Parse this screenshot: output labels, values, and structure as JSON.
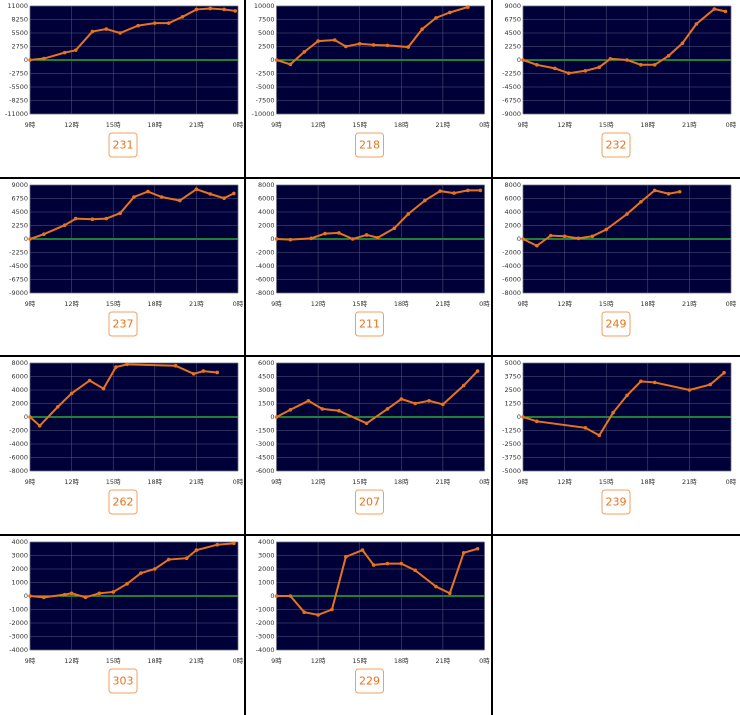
{
  "chart_data": [
    {
      "type": "line",
      "label": "231",
      "color": "#e8731a",
      "grid": true,
      "x": [
        9,
        10,
        11.5,
        12.3,
        13.5,
        14.5,
        15.5,
        16.8,
        18,
        19,
        20,
        21,
        22,
        23,
        23.8
      ],
      "values": [
        0,
        300,
        1500,
        2000,
        5800,
        6300,
        5500,
        7000,
        7500,
        7500,
        8800,
        10300,
        10500,
        10300,
        10000
      ],
      "xlim": [
        9,
        24
      ],
      "xticks": [
        {
          "value": 9,
          "label": "9時"
        },
        {
          "value": 12,
          "label": "12時"
        },
        {
          "value": 15,
          "label": "15時"
        },
        {
          "value": 18,
          "label": "18時"
        },
        {
          "value": 21,
          "label": "21時"
        },
        {
          "value": 24,
          "label": "0時"
        }
      ],
      "ylim": [
        -11000,
        11000
      ],
      "yticks": [
        11000,
        8250,
        5500,
        2750,
        0,
        -2750,
        -5500,
        -8250,
        -11000
      ]
    },
    {
      "type": "line",
      "label": "218",
      "color": "#e8731a",
      "grid": true,
      "x": [
        9,
        10,
        11,
        12,
        13.2,
        14,
        15,
        16,
        17,
        18.5,
        19.5,
        20.5,
        21.5,
        22.8
      ],
      "values": [
        0,
        -800,
        1500,
        3500,
        3700,
        2500,
        3000,
        2800,
        2700,
        2400,
        5700,
        7800,
        8800,
        9800
      ],
      "xlim": [
        9,
        24
      ],
      "xticks": [
        {
          "value": 9,
          "label": "9時"
        },
        {
          "value": 12,
          "label": "12時"
        },
        {
          "value": 15,
          "label": "15時"
        },
        {
          "value": 18,
          "label": "18時"
        },
        {
          "value": 21,
          "label": "21時"
        },
        {
          "value": 24,
          "label": "0時"
        }
      ],
      "ylim": [
        -10000,
        10000
      ],
      "yticks": [
        10000,
        7500,
        5000,
        2500,
        0,
        -2500,
        -5000,
        -7500,
        -10000
      ]
    },
    {
      "type": "line",
      "label": "232",
      "color": "#e8731a",
      "grid": true,
      "x": [
        9,
        10,
        11.3,
        12.3,
        13.5,
        14.5,
        15.3,
        16.5,
        17.5,
        18.5,
        19.5,
        20.5,
        21.5,
        22.8,
        23.6
      ],
      "values": [
        0,
        -800,
        -1400,
        -2200,
        -1800,
        -1200,
        200,
        0,
        -800,
        -800,
        700,
        2800,
        6000,
        8500,
        8100
      ],
      "xlim": [
        9,
        24
      ],
      "xticks": [
        {
          "value": 9,
          "label": "9時"
        },
        {
          "value": 12,
          "label": "12時"
        },
        {
          "value": 15,
          "label": "15時"
        },
        {
          "value": 18,
          "label": "18時"
        },
        {
          "value": 21,
          "label": "21時"
        },
        {
          "value": 24,
          "label": "0時"
        }
      ],
      "ylim": [
        -9000,
        9000
      ],
      "yticks": [
        9000,
        6750,
        4500,
        2250,
        0,
        -2250,
        -4500,
        -6750,
        -9000
      ]
    },
    {
      "type": "line",
      "label": "237",
      "color": "#e8731a",
      "grid": true,
      "x": [
        9,
        10,
        11.5,
        12.3,
        13.5,
        14.5,
        15.5,
        16.5,
        17.5,
        18.5,
        19.8,
        21,
        22,
        23,
        23.7
      ],
      "values": [
        0,
        800,
        2300,
        3400,
        3300,
        3400,
        4300,
        7000,
        7900,
        7000,
        6400,
        8300,
        7500,
        6800,
        7600
      ],
      "xlim": [
        9,
        24
      ],
      "xticks": [
        {
          "value": 9,
          "label": "9時"
        },
        {
          "value": 12,
          "label": "12時"
        },
        {
          "value": 15,
          "label": "15時"
        },
        {
          "value": 18,
          "label": "18時"
        },
        {
          "value": 21,
          "label": "21時"
        },
        {
          "value": 24,
          "label": "0時"
        }
      ],
      "ylim": [
        -9000,
        9000
      ],
      "yticks": [
        9000,
        6750,
        4500,
        2250,
        0,
        -2250,
        -4500,
        -6750,
        -9000
      ]
    },
    {
      "type": "line",
      "label": "211",
      "color": "#e8731a",
      "grid": true,
      "x": [
        9,
        10,
        11.5,
        12.5,
        13.5,
        14.5,
        15.5,
        16.3,
        17.5,
        18.5,
        19.7,
        20.8,
        21.8,
        22.8,
        23.7
      ],
      "values": [
        0,
        -100,
        100,
        800,
        900,
        0,
        600,
        200,
        1600,
        3700,
        5700,
        7100,
        6800,
        7200,
        7200
      ],
      "xlim": [
        9,
        24
      ],
      "xticks": [
        {
          "value": 9,
          "label": "9時"
        },
        {
          "value": 12,
          "label": "12時"
        },
        {
          "value": 15,
          "label": "15時"
        },
        {
          "value": 18,
          "label": "18時"
        },
        {
          "value": 21,
          "label": "21時"
        },
        {
          "value": 24,
          "label": "0時"
        }
      ],
      "ylim": [
        -8000,
        8000
      ],
      "yticks": [
        8000,
        6000,
        4000,
        2000,
        0,
        -2000,
        -4000,
        -6000,
        -8000
      ]
    },
    {
      "type": "line",
      "label": "249",
      "color": "#e8731a",
      "grid": true,
      "x": [
        9,
        10,
        11,
        12,
        13,
        14,
        15,
        16.5,
        17.5,
        18.5,
        19.5,
        20.3
      ],
      "values": [
        0,
        -1000,
        500,
        400,
        100,
        400,
        1400,
        3700,
        5500,
        7200,
        6700,
        7000
      ],
      "xlim": [
        9,
        24
      ],
      "xticks": [
        {
          "value": 9,
          "label": "9時"
        },
        {
          "value": 12,
          "label": "12時"
        },
        {
          "value": 15,
          "label": "15時"
        },
        {
          "value": 18,
          "label": "18時"
        },
        {
          "value": 21,
          "label": "21時"
        },
        {
          "value": 24,
          "label": "0時"
        }
      ],
      "ylim": [
        -8000,
        8000
      ],
      "yticks": [
        8000,
        6000,
        4000,
        2000,
        0,
        -2000,
        -4000,
        -6000,
        -8000
      ]
    },
    {
      "type": "line",
      "label": "262",
      "color": "#e8731a",
      "grid": true,
      "x": [
        9,
        9.7,
        11,
        12,
        13.3,
        14.3,
        15.2,
        16,
        19.5,
        20.8,
        21.5,
        22.5
      ],
      "values": [
        0,
        -1300,
        1500,
        3500,
        5400,
        4200,
        7400,
        7800,
        7600,
        6400,
        6800,
        6600
      ],
      "xlim": [
        9,
        24
      ],
      "xticks": [
        {
          "value": 9,
          "label": "9時"
        },
        {
          "value": 12,
          "label": "12時"
        },
        {
          "value": 15,
          "label": "15時"
        },
        {
          "value": 18,
          "label": "18時"
        },
        {
          "value": 21,
          "label": "21時"
        },
        {
          "value": 24,
          "label": "0時"
        }
      ],
      "ylim": [
        -8000,
        8000
      ],
      "yticks": [
        8000,
        6000,
        4000,
        2000,
        0,
        -2000,
        -4000,
        -6000,
        -8000
      ]
    },
    {
      "type": "line",
      "label": "207",
      "color": "#e8731a",
      "grid": true,
      "x": [
        9,
        10,
        11.3,
        12.3,
        13.5,
        15.5,
        17,
        18,
        19,
        20,
        21,
        22.5,
        23.5
      ],
      "values": [
        0,
        800,
        1800,
        900,
        700,
        -700,
        900,
        2000,
        1500,
        1800,
        1400,
        3500,
        5100
      ],
      "xlim": [
        9,
        24
      ],
      "xticks": [
        {
          "value": 9,
          "label": "9時"
        },
        {
          "value": 12,
          "label": "12時"
        },
        {
          "value": 15,
          "label": "15時"
        },
        {
          "value": 18,
          "label": "18時"
        },
        {
          "value": 21,
          "label": "21時"
        },
        {
          "value": 24,
          "label": "0時"
        }
      ],
      "ylim": [
        -6000,
        6000
      ],
      "yticks": [
        6000,
        4500,
        3000,
        1500,
        0,
        -1500,
        -3000,
        -4500,
        -6000
      ]
    },
    {
      "type": "line",
      "label": "239",
      "color": "#e8731a",
      "grid": true,
      "x": [
        9,
        10,
        13.5,
        14.5,
        15.5,
        16.5,
        17.5,
        18.5,
        21,
        22.5,
        23.5
      ],
      "values": [
        0,
        -400,
        -1000,
        -1700,
        400,
        2000,
        3300,
        3200,
        2500,
        3000,
        4100
      ],
      "xlim": [
        9,
        24
      ],
      "xticks": [
        {
          "value": 9,
          "label": "9時"
        },
        {
          "value": 12,
          "label": "12時"
        },
        {
          "value": 15,
          "label": "15時"
        },
        {
          "value": 18,
          "label": "18時"
        },
        {
          "value": 21,
          "label": "21時"
        },
        {
          "value": 24,
          "label": "0時"
        }
      ],
      "ylim": [
        -5000,
        5000
      ],
      "yticks": [
        5000,
        3750,
        2500,
        1250,
        0,
        -1250,
        -2500,
        -3750,
        -5000
      ]
    },
    {
      "type": "line",
      "label": "303",
      "color": "#e8731a",
      "grid": true,
      "x": [
        9,
        10,
        11.5,
        12,
        13,
        14,
        15,
        16,
        17,
        18,
        19,
        20.3,
        21,
        22.5,
        23.7
      ],
      "values": [
        0,
        -100,
        100,
        200,
        -100,
        200,
        300,
        900,
        1700,
        2000,
        2700,
        2800,
        3400,
        3800,
        3900
      ],
      "xlim": [
        9,
        24
      ],
      "xticks": [
        {
          "value": 9,
          "label": "9時"
        },
        {
          "value": 12,
          "label": "12時"
        },
        {
          "value": 15,
          "label": "15時"
        },
        {
          "value": 18,
          "label": "18時"
        },
        {
          "value": 21,
          "label": "21時"
        },
        {
          "value": 24,
          "label": "0時"
        }
      ],
      "ylim": [
        -4000,
        4000
      ],
      "yticks": [
        4000,
        3000,
        2000,
        1000,
        0,
        -1000,
        -2000,
        -3000,
        -4000
      ]
    },
    {
      "type": "line",
      "label": "229",
      "color": "#e8731a",
      "grid": true,
      "x": [
        9,
        10,
        11,
        12,
        13,
        14,
        15.2,
        16,
        17,
        18,
        19,
        20.5,
        21.5,
        22.5,
        23.5
      ],
      "values": [
        0,
        0,
        -1200,
        -1400,
        -1000,
        2900,
        3400,
        2300,
        2400,
        2400,
        1900,
        700,
        200,
        3200,
        3500
      ],
      "xlim": [
        9,
        24
      ],
      "xticks": [
        {
          "value": 9,
          "label": "9時"
        },
        {
          "value": 12,
          "label": "12時"
        },
        {
          "value": 15,
          "label": "15時"
        },
        {
          "value": 18,
          "label": "18時"
        },
        {
          "value": 21,
          "label": "21時"
        },
        {
          "value": 24,
          "label": "0時"
        }
      ],
      "ylim": [
        -4000,
        4000
      ],
      "yticks": [
        4000,
        3000,
        2000,
        1000,
        0,
        -1000,
        -2000,
        -3000,
        -4000
      ]
    }
  ]
}
